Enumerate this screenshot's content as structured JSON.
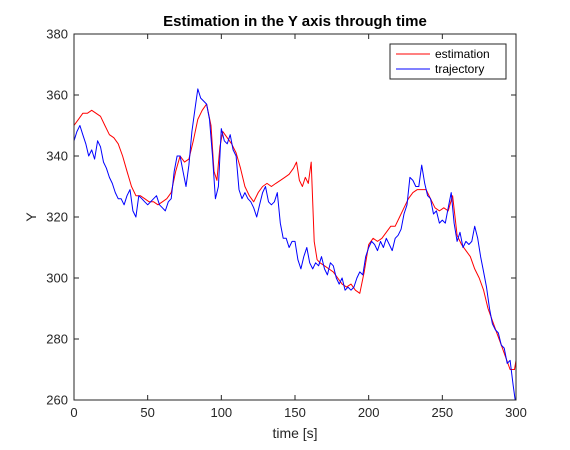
{
  "chart_data": {
    "type": "line",
    "title": "Estimation in the Y axis through time",
    "xlabel": "time [s]",
    "ylabel": "Y",
    "xlim": [
      0,
      300
    ],
    "ylim": [
      260,
      380
    ],
    "xticks": [
      "0",
      "50",
      "100",
      "150",
      "200",
      "250",
      "300"
    ],
    "yticks": [
      "260",
      "280",
      "300",
      "320",
      "340",
      "360",
      "380"
    ],
    "grid": false,
    "legend_position": "top-right",
    "series": [
      {
        "name": "estimation",
        "color": "#ff0000",
        "x": [
          0,
          3,
          6,
          9,
          12,
          15,
          18,
          21,
          24,
          27,
          30,
          33,
          36,
          39,
          42,
          45,
          48,
          51,
          54,
          57,
          60,
          63,
          66,
          69,
          72,
          75,
          78,
          81,
          84,
          87,
          90,
          93,
          95,
          97,
          99,
          101,
          104,
          107,
          110,
          113,
          116,
          119,
          122,
          125,
          128,
          131,
          134,
          137,
          140,
          143,
          146,
          149,
          151,
          153,
          155,
          157,
          159,
          161,
          163,
          165,
          167,
          170,
          173,
          176,
          179,
          182,
          185,
          188,
          191,
          194,
          197,
          200,
          203,
          206,
          209,
          212,
          215,
          218,
          221,
          224,
          227,
          230,
          233,
          236,
          239,
          242,
          245,
          248,
          251,
          254,
          257,
          260,
          263,
          266,
          269,
          272,
          275,
          278,
          281,
          284,
          287,
          290,
          293,
          296,
          299,
          300
        ],
        "y": [
          350,
          352,
          354,
          354,
          355,
          354,
          353,
          350,
          347,
          346,
          344,
          340,
          335,
          330,
          327,
          327,
          326,
          325,
          325,
          324,
          325,
          326,
          328,
          335,
          340,
          338,
          339,
          345,
          352,
          355,
          357,
          350,
          335,
          332,
          343,
          348,
          346,
          344,
          341,
          336,
          330,
          327,
          325,
          328,
          330,
          331,
          330,
          331,
          332,
          333,
          334,
          336,
          338,
          332,
          330,
          333,
          331,
          338,
          312,
          306,
          305,
          304,
          303,
          302,
          300,
          298,
          297,
          298,
          296,
          295,
          302,
          311,
          313,
          312,
          313,
          315,
          317,
          317,
          320,
          323,
          326,
          328,
          329,
          329,
          329,
          326,
          323,
          322,
          323,
          322,
          327,
          314,
          311,
          309,
          307,
          303,
          300,
          296,
          290,
          286,
          282,
          278,
          274,
          270,
          270,
          273
        ]
      },
      {
        "name": "trajectory",
        "color": "#0000ff",
        "x": [
          0,
          2,
          4,
          6,
          8,
          10,
          12,
          14,
          16,
          18,
          20,
          22,
          24,
          26,
          28,
          30,
          32,
          34,
          36,
          38,
          40,
          42,
          44,
          46,
          48,
          50,
          52,
          54,
          56,
          58,
          60,
          62,
          64,
          66,
          68,
          70,
          72,
          74,
          76,
          78,
          80,
          82,
          84,
          86,
          88,
          90,
          92,
          94,
          96,
          98,
          100,
          102,
          104,
          106,
          108,
          110,
          112,
          114,
          116,
          118,
          120,
          122,
          124,
          126,
          128,
          130,
          132,
          134,
          136,
          138,
          140,
          142,
          144,
          146,
          148,
          150,
          152,
          154,
          156,
          158,
          160,
          162,
          164,
          166,
          168,
          170,
          172,
          174,
          176,
          178,
          180,
          182,
          184,
          186,
          188,
          190,
          192,
          194,
          196,
          198,
          200,
          202,
          204,
          206,
          208,
          210,
          212,
          214,
          216,
          218,
          220,
          222,
          224,
          226,
          228,
          230,
          232,
          234,
          236,
          238,
          240,
          242,
          244,
          246,
          248,
          250,
          252,
          254,
          256,
          258,
          260,
          262,
          264,
          266,
          268,
          270,
          272,
          274,
          276,
          278,
          280,
          282,
          284,
          286,
          288,
          290,
          292,
          294,
          296,
          298,
          300
        ],
        "y": [
          345,
          348,
          350,
          347,
          344,
          340,
          342,
          339,
          345,
          343,
          338,
          336,
          333,
          331,
          328,
          326,
          326,
          324,
          327,
          329,
          322,
          320,
          327,
          326,
          325,
          324,
          325,
          326,
          327,
          324,
          323,
          322,
          325,
          326,
          335,
          340,
          340,
          335,
          330,
          337,
          348,
          355,
          362,
          359,
          358,
          357,
          352,
          340,
          326,
          330,
          349,
          345,
          344,
          347,
          342,
          340,
          329,
          326,
          328,
          326,
          325,
          323,
          320,
          324,
          328,
          330,
          325,
          324,
          325,
          328,
          318,
          313,
          313,
          310,
          312,
          312,
          306,
          303,
          307,
          310,
          305,
          303,
          305,
          304,
          307,
          303,
          301,
          305,
          304,
          300,
          298,
          300,
          296,
          297,
          296,
          297,
          300,
          302,
          301,
          307,
          310,
          312,
          311,
          309,
          312,
          310,
          313,
          311,
          309,
          313,
          314,
          316,
          321,
          324,
          333,
          332,
          330,
          330,
          337,
          331,
          327,
          326,
          321,
          322,
          318,
          319,
          318,
          323,
          328,
          318,
          312,
          315,
          310,
          312,
          311,
          312,
          317,
          313,
          307,
          302,
          297,
          290,
          285,
          283,
          282,
          278,
          277,
          272,
          273,
          265,
          258
        ]
      }
    ]
  }
}
